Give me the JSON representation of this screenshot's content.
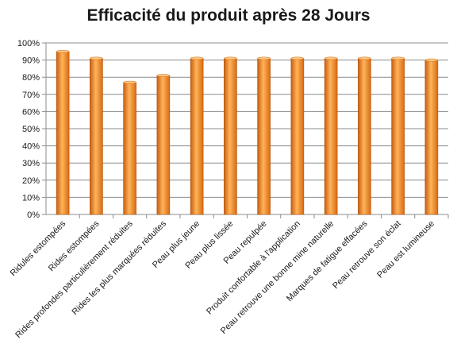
{
  "chart_data": {
    "type": "bar",
    "title": "Efficacité du produit après 28 Jours",
    "xlabel": "",
    "ylabel": "",
    "ylim": [
      0,
      100
    ],
    "y_ticks": [
      "0%",
      "10%",
      "20%",
      "30%",
      "40%",
      "50%",
      "60%",
      "70%",
      "80%",
      "90%",
      "100%"
    ],
    "grid": true,
    "legend": "none",
    "bar_color": "#f0902a",
    "categories": [
      "Ridules estompées",
      "Rides estompées",
      "Rides profondes particulièrement réduites",
      "Rides les plus marquées réduites",
      "Peau plus jeune",
      "Peau plus lissée",
      "Peau repulpée",
      "Produit confortable à l'application",
      "Peau retrouve une bonne mine naturelle",
      "Marques de fatigue effacées",
      "Peau retrouve son éclat",
      "Peau est lumineuse"
    ],
    "values": [
      95,
      91,
      77,
      81,
      91,
      91,
      91,
      91,
      91,
      91,
      91,
      90
    ]
  }
}
